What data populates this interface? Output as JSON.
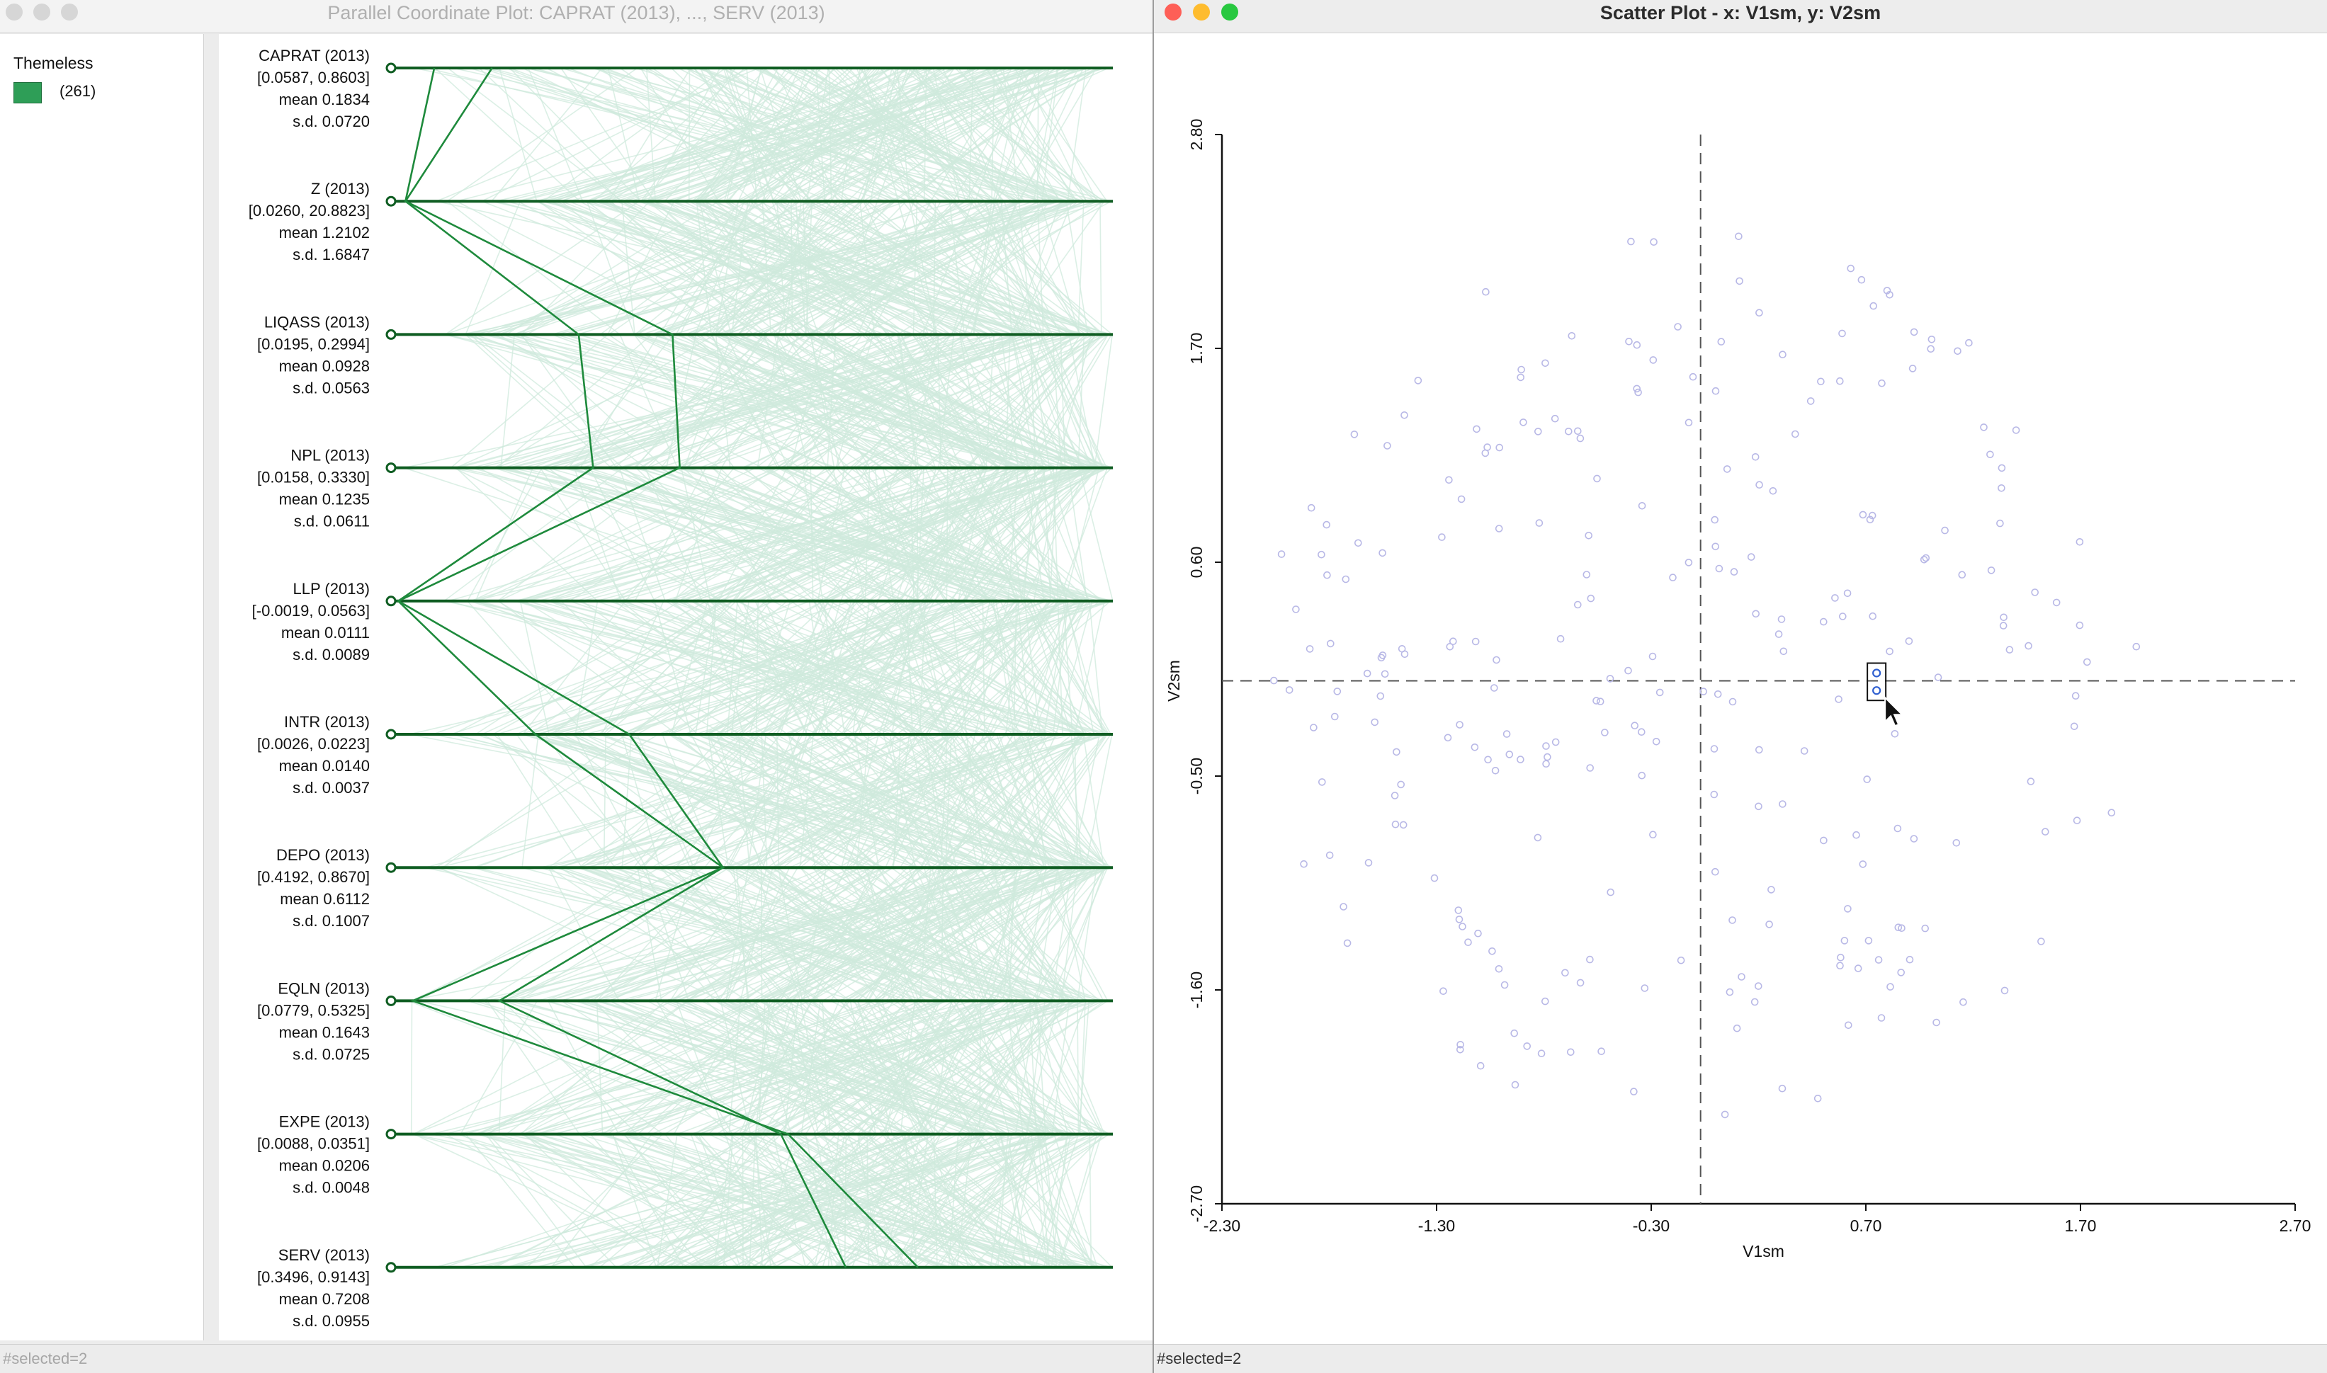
{
  "pcp_window": {
    "title": "Parallel Coordinate Plot: CAPRAT (2013), ..., SERV (2013)",
    "status": "#selected=2",
    "legend": {
      "title": "Themeless",
      "count_label": "(261)",
      "color": "#2e9e57"
    },
    "line_color": "#cfeadc",
    "highlight_color": "#1e8a3c",
    "axes": [
      {
        "name": "CAPRAT (2013)",
        "range": "[0.0587, 0.8603]",
        "mean": "mean  0.1834",
        "sd": "s.d.  0.0720"
      },
      {
        "name": "Z (2013)",
        "range": "[0.0260, 20.8823]",
        "mean": "mean  1.2102",
        "sd": "s.d.  1.6847"
      },
      {
        "name": "LIQASS (2013)",
        "range": "[0.0195, 0.2994]",
        "mean": "mean  0.0928",
        "sd": "s.d.  0.0563"
      },
      {
        "name": "NPL (2013)",
        "range": "[0.0158, 0.3330]",
        "mean": "mean  0.1235",
        "sd": "s.d.  0.0611"
      },
      {
        "name": "LLP (2013)",
        "range": "[-0.0019, 0.0563]",
        "mean": "mean  0.0111",
        "sd": "s.d.  0.0089"
      },
      {
        "name": "INTR (2013)",
        "range": "[0.0026, 0.0223]",
        "mean": "mean  0.0140",
        "sd": "s.d.  0.0037"
      },
      {
        "name": "DEPO (2013)",
        "range": "[0.4192, 0.8670]",
        "mean": "mean  0.6112",
        "sd": "s.d.  0.1007"
      },
      {
        "name": "EQLN (2013)",
        "range": "[0.0779, 0.5325]",
        "mean": "mean  0.1643",
        "sd": "s.d.  0.0725"
      },
      {
        "name": "EXPE (2013)",
        "range": "[0.0088, 0.0351]",
        "mean": "mean  0.0206",
        "sd": "s.d.  0.0048"
      },
      {
        "name": "SERV (2013)",
        "range": "[0.3496, 0.9143]",
        "mean": "mean  0.7208",
        "sd": "s.d.  0.0955"
      }
    ],
    "selected_lines": [
      [
        0.06,
        0.02,
        0.39,
        0.4,
        0.01,
        0.33,
        0.46,
        0.15,
        0.54,
        0.63
      ],
      [
        0.14,
        0.02,
        0.26,
        0.28,
        0.01,
        0.2,
        0.46,
        0.03,
        0.55,
        0.73
      ]
    ]
  },
  "scatter_window": {
    "title": "Scatter Plot - x: V1sm, y: V2sm",
    "status": "#selected=2",
    "point_color": "#b8b8e6",
    "selected_color": "#2f5fd0"
  },
  "chart_data": {
    "type": "scatter",
    "title": "Scatter Plot - x: V1sm, y: V2sm",
    "xlabel": "V1sm",
    "ylabel": "V2sm",
    "xlim": [
      -2.3,
      2.7
    ],
    "ylim": [
      -2.7,
      2.8
    ],
    "xticks": [
      "-2.30",
      "-1.30",
      "-0.30",
      "0.70",
      "1.70",
      "2.70"
    ],
    "yticks": [
      "-2.70",
      "-1.60",
      "-0.50",
      "0.60",
      "1.70",
      "2.80"
    ],
    "mean_x": -0.07,
    "mean_y": -0.01,
    "grid": false,
    "selected_points": [
      [
        0.75,
        -0.06
      ],
      [
        0.75,
        0.03
      ]
    ]
  }
}
